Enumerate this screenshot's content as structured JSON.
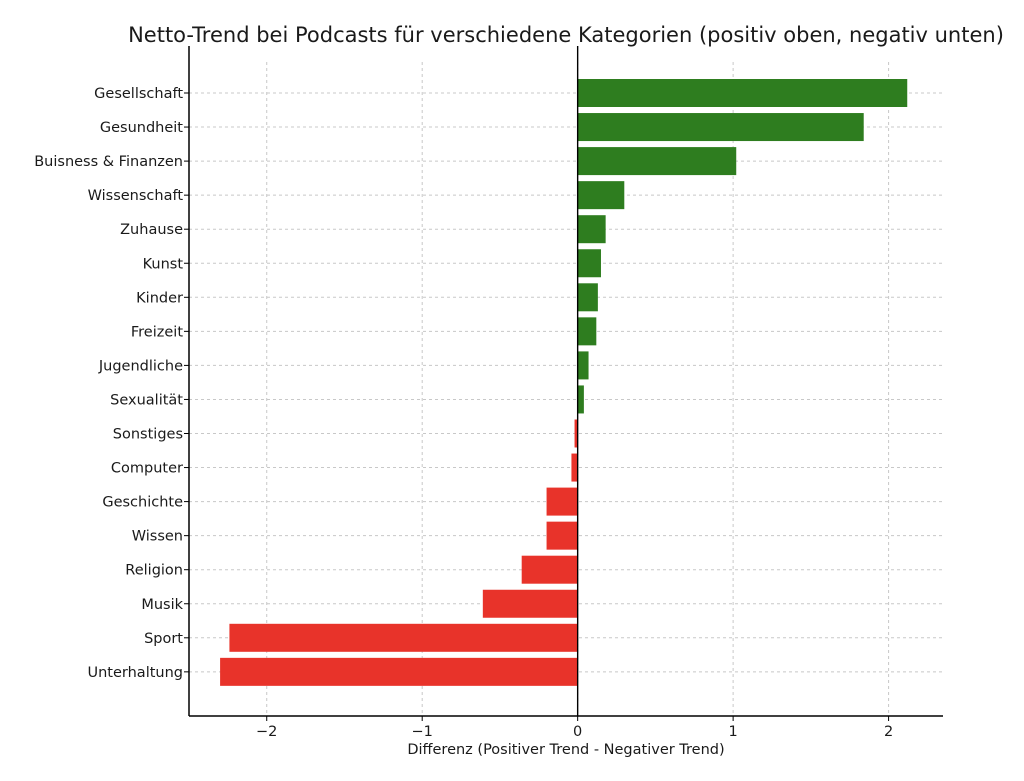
{
  "chart_data": {
    "type": "bar",
    "orientation": "horizontal",
    "title": "Netto-Trend bei Podcasts für verschiedene Kategorien (positiv oben, negativ unten)",
    "xlabel": "Differenz (Positiver Trend - Negativer Trend)",
    "ylabel": "",
    "xlim": [
      -2.5,
      2.35
    ],
    "xticks": [
      -2,
      -1,
      0,
      1,
      2
    ],
    "xtick_labels": [
      "−2",
      "−1",
      "0",
      "1",
      "2"
    ],
    "grid": true,
    "colors": {
      "positive": "#2e7d1f",
      "negative": "#e8332a"
    },
    "categories": [
      "Gesellschaft",
      "Gesundheit",
      "Buisness & Finanzen",
      "Wissenschaft",
      "Zuhause",
      "Kunst",
      "Kinder",
      "Freizeit",
      "Jugendliche",
      "Sexualität",
      "Sonstiges",
      "Computer",
      "Geschichte",
      "Wissen",
      "Religion",
      "Musik",
      "Sport",
      "Unterhaltung"
    ],
    "values": [
      2.12,
      1.84,
      1.02,
      0.3,
      0.18,
      0.15,
      0.13,
      0.12,
      0.07,
      0.04,
      -0.02,
      -0.04,
      -0.2,
      -0.2,
      -0.36,
      -0.61,
      -2.24,
      -2.3
    ]
  }
}
